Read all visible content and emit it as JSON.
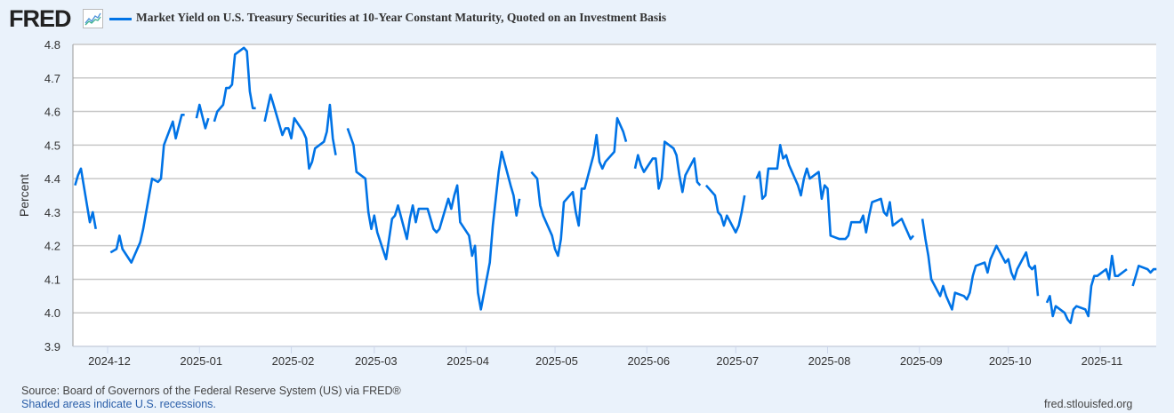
{
  "header": {
    "logo": "FRED",
    "logo_icon": "line-chart-icon",
    "title": "Market Yield on U.S. Treasury Securities at 10-Year Constant Maturity, Quoted on an Investment Basis"
  },
  "footer": {
    "source": "Source: Board of Governors of the Federal Reserve System (US) via FRED®",
    "recessions_link": "Shaded areas indicate U.S. recessions.",
    "site": "fred.stlouisfed.org"
  },
  "colors": {
    "series": "#0073e6",
    "grid": "#c8c8c8",
    "background": "#eaf2fb",
    "plot": "#ffffff"
  },
  "chart_data": {
    "type": "line",
    "title": "Market Yield on U.S. Treasury Securities at 10-Year Constant Maturity, Quoted on an Investment Basis",
    "xlabel": "",
    "ylabel": "Percent",
    "ylim": [
      3.9,
      4.8
    ],
    "xlim": [
      "2024-11-20",
      "2025-11-20"
    ],
    "yticks": [
      "3.9",
      "4.0",
      "4.1",
      "4.2",
      "4.3",
      "4.4",
      "4.5",
      "4.6",
      "4.7",
      "4.8"
    ],
    "xticks": [
      "2024-12",
      "2025-01",
      "2025-02",
      "2025-03",
      "2025-04",
      "2025-05",
      "2025-06",
      "2025-07",
      "2025-08",
      "2025-09",
      "2025-10",
      "2025-11"
    ],
    "grid": true,
    "legend": "top",
    "series": [
      {
        "name": "Market Yield on U.S. Treasury Securities at 10-Year Constant Maturity, Quoted on an Investment Basis",
        "points": [
          [
            "2024-11-20",
            4.38
          ],
          [
            "2024-11-21",
            4.41
          ],
          [
            "2024-11-22",
            4.43
          ],
          [
            "2024-11-25",
            4.27
          ],
          [
            "2024-11-26",
            4.3
          ],
          [
            "2024-11-27",
            4.25
          ],
          [
            "2024-11-28",
            null
          ],
          [
            "2024-12-02",
            4.18
          ],
          [
            "2024-12-04",
            4.19
          ],
          [
            "2024-12-05",
            4.23
          ],
          [
            "2024-12-06",
            4.19
          ],
          [
            "2024-12-09",
            4.15
          ],
          [
            "2024-12-10",
            4.17
          ],
          [
            "2024-12-12",
            4.21
          ],
          [
            "2024-12-13",
            4.25
          ],
          [
            "2024-12-16",
            4.4
          ],
          [
            "2024-12-18",
            4.39
          ],
          [
            "2024-12-19",
            4.4
          ],
          [
            "2024-12-20",
            4.5
          ],
          [
            "2024-12-23",
            4.57
          ],
          [
            "2024-12-24",
            4.52
          ],
          [
            "2024-12-26",
            4.59
          ],
          [
            "2024-12-27",
            4.59
          ],
          [
            "2024-12-28",
            null
          ],
          [
            "2024-12-31",
            4.58
          ],
          [
            "2025-01-01",
            4.62
          ],
          [
            "2025-01-03",
            4.55
          ],
          [
            "2025-01-04",
            4.58
          ],
          [
            "2025-01-05",
            null
          ],
          [
            "2025-01-06",
            4.57
          ],
          [
            "2025-01-07",
            4.6
          ],
          [
            "2025-01-09",
            4.62
          ],
          [
            "2025-01-10",
            4.67
          ],
          [
            "2025-01-11",
            4.67
          ],
          [
            "2025-01-12",
            4.68
          ],
          [
            "2025-01-13",
            4.77
          ],
          [
            "2025-01-16",
            4.79
          ],
          [
            "2025-01-17",
            4.78
          ],
          [
            "2025-01-18",
            4.66
          ],
          [
            "2025-01-19",
            4.61
          ],
          [
            "2025-01-20",
            4.61
          ],
          [
            "2025-01-21",
            null
          ],
          [
            "2025-01-23",
            4.57
          ],
          [
            "2025-01-25",
            4.65
          ],
          [
            "2025-01-26",
            4.62
          ],
          [
            "2025-01-29",
            4.53
          ],
          [
            "2025-01-30",
            4.55
          ],
          [
            "2025-01-31",
            4.55
          ],
          [
            "2025-02-01",
            4.52
          ],
          [
            "2025-02-02",
            4.58
          ],
          [
            "2025-02-05",
            4.54
          ],
          [
            "2025-02-06",
            4.52
          ],
          [
            "2025-02-07",
            4.43
          ],
          [
            "2025-02-08",
            4.45
          ],
          [
            "2025-02-09",
            4.49
          ],
          [
            "2025-02-12",
            4.51
          ],
          [
            "2025-02-13",
            4.54
          ],
          [
            "2025-02-14",
            4.62
          ],
          [
            "2025-02-15",
            4.52
          ],
          [
            "2025-02-16",
            4.47
          ],
          [
            "2025-02-17",
            null
          ],
          [
            "2025-02-20",
            4.55
          ],
          [
            "2025-02-22",
            4.5
          ],
          [
            "2025-02-23",
            4.42
          ],
          [
            "2025-02-26",
            4.4
          ],
          [
            "2025-02-27",
            4.3
          ],
          [
            "2025-02-28",
            4.25
          ],
          [
            "2025-03-01",
            4.29
          ],
          [
            "2025-03-02",
            4.24
          ],
          [
            "2025-03-05",
            4.16
          ],
          [
            "2025-03-07",
            4.28
          ],
          [
            "2025-03-08",
            4.29
          ],
          [
            "2025-03-09",
            4.32
          ],
          [
            "2025-03-12",
            4.22
          ],
          [
            "2025-03-13",
            4.28
          ],
          [
            "2025-03-14",
            4.32
          ],
          [
            "2025-03-15",
            4.27
          ],
          [
            "2025-03-16",
            4.31
          ],
          [
            "2025-03-19",
            4.31
          ],
          [
            "2025-03-20",
            4.28
          ],
          [
            "2025-03-21",
            4.25
          ],
          [
            "2025-03-22",
            4.24
          ],
          [
            "2025-03-23",
            4.25
          ],
          [
            "2025-03-26",
            4.34
          ],
          [
            "2025-03-27",
            4.31
          ],
          [
            "2025-03-28",
            4.35
          ],
          [
            "2025-03-29",
            4.38
          ],
          [
            "2025-03-30",
            4.27
          ],
          [
            "2025-04-02",
            4.23
          ],
          [
            "2025-04-03",
            4.17
          ],
          [
            "2025-04-04",
            4.2
          ],
          [
            "2025-04-05",
            4.06
          ],
          [
            "2025-04-06",
            4.01
          ],
          [
            "2025-04-09",
            4.15
          ],
          [
            "2025-04-10",
            4.26
          ],
          [
            "2025-04-11",
            4.34
          ],
          [
            "2025-04-12",
            4.42
          ],
          [
            "2025-04-13",
            4.48
          ],
          [
            "2025-04-16",
            4.38
          ],
          [
            "2025-04-17",
            4.35
          ],
          [
            "2025-04-18",
            4.29
          ],
          [
            "2025-04-19",
            4.34
          ],
          [
            "2025-04-20",
            null
          ],
          [
            "2025-04-23",
            4.42
          ],
          [
            "2025-04-25",
            4.4
          ],
          [
            "2025-04-26",
            4.32
          ],
          [
            "2025-04-27",
            4.29
          ],
          [
            "2025-04-30",
            4.23
          ],
          [
            "2025-05-01",
            4.19
          ],
          [
            "2025-05-02",
            4.17
          ],
          [
            "2025-05-03",
            4.22
          ],
          [
            "2025-05-04",
            4.33
          ],
          [
            "2025-05-07",
            4.36
          ],
          [
            "2025-05-08",
            4.3
          ],
          [
            "2025-05-09",
            4.26
          ],
          [
            "2025-05-10",
            4.37
          ],
          [
            "2025-05-11",
            4.37
          ],
          [
            "2025-05-14",
            4.47
          ],
          [
            "2025-05-15",
            4.53
          ],
          [
            "2025-05-16",
            4.45
          ],
          [
            "2025-05-17",
            4.43
          ],
          [
            "2025-05-18",
            4.45
          ],
          [
            "2025-05-21",
            4.48
          ],
          [
            "2025-05-22",
            4.58
          ],
          [
            "2025-05-24",
            4.54
          ],
          [
            "2025-05-25",
            4.51
          ],
          [
            "2025-05-26",
            null
          ],
          [
            "2025-05-28",
            4.43
          ],
          [
            "2025-05-29",
            4.47
          ],
          [
            "2025-05-30",
            4.44
          ],
          [
            "2025-05-31",
            4.42
          ],
          [
            "2025-06-03",
            4.46
          ],
          [
            "2025-06-04",
            4.46
          ],
          [
            "2025-06-05",
            4.37
          ],
          [
            "2025-06-06",
            4.4
          ],
          [
            "2025-06-07",
            4.51
          ],
          [
            "2025-06-10",
            4.49
          ],
          [
            "2025-06-11",
            4.47
          ],
          [
            "2025-06-12",
            4.41
          ],
          [
            "2025-06-13",
            4.36
          ],
          [
            "2025-06-14",
            4.41
          ],
          [
            "2025-06-17",
            4.46
          ],
          [
            "2025-06-18",
            4.39
          ],
          [
            "2025-06-19",
            4.38
          ],
          [
            "2025-06-20",
            null
          ],
          [
            "2025-06-21",
            4.38
          ],
          [
            "2025-06-24",
            4.35
          ],
          [
            "2025-06-25",
            4.3
          ],
          [
            "2025-06-26",
            4.29
          ],
          [
            "2025-06-27",
            4.26
          ],
          [
            "2025-06-28",
            4.29
          ],
          [
            "2025-07-01",
            4.24
          ],
          [
            "2025-07-02",
            4.26
          ],
          [
            "2025-07-03",
            4.3
          ],
          [
            "2025-07-04",
            4.35
          ],
          [
            "2025-07-05",
            null
          ],
          [
            "2025-07-08",
            4.4
          ],
          [
            "2025-07-09",
            4.42
          ],
          [
            "2025-07-10",
            4.34
          ],
          [
            "2025-07-11",
            4.35
          ],
          [
            "2025-07-12",
            4.43
          ],
          [
            "2025-07-15",
            4.43
          ],
          [
            "2025-07-16",
            4.5
          ],
          [
            "2025-07-17",
            4.46
          ],
          [
            "2025-07-18",
            4.47
          ],
          [
            "2025-07-19",
            4.44
          ],
          [
            "2025-07-22",
            4.38
          ],
          [
            "2025-07-23",
            4.35
          ],
          [
            "2025-07-24",
            4.4
          ],
          [
            "2025-07-25",
            4.43
          ],
          [
            "2025-07-26",
            4.4
          ],
          [
            "2025-07-29",
            4.42
          ],
          [
            "2025-07-30",
            4.34
          ],
          [
            "2025-07-31",
            4.38
          ],
          [
            "2025-08-01",
            4.37
          ],
          [
            "2025-08-02",
            4.23
          ],
          [
            "2025-08-05",
            4.22
          ],
          [
            "2025-08-06",
            4.22
          ],
          [
            "2025-08-07",
            4.22
          ],
          [
            "2025-08-08",
            4.23
          ],
          [
            "2025-08-09",
            4.27
          ],
          [
            "2025-08-12",
            4.27
          ],
          [
            "2025-08-13",
            4.29
          ],
          [
            "2025-08-14",
            4.24
          ],
          [
            "2025-08-15",
            4.29
          ],
          [
            "2025-08-16",
            4.33
          ],
          [
            "2025-08-19",
            4.34
          ],
          [
            "2025-08-20",
            4.3
          ],
          [
            "2025-08-21",
            4.29
          ],
          [
            "2025-08-22",
            4.33
          ],
          [
            "2025-08-23",
            4.26
          ],
          [
            "2025-08-26",
            4.28
          ],
          [
            "2025-08-27",
            4.26
          ],
          [
            "2025-08-28",
            4.24
          ],
          [
            "2025-08-29",
            4.22
          ],
          [
            "2025-08-30",
            4.23
          ],
          [
            "2025-08-31",
            null
          ],
          [
            "2025-09-02",
            4.28
          ],
          [
            "2025-09-03",
            4.22
          ],
          [
            "2025-09-04",
            4.17
          ],
          [
            "2025-09-05",
            4.1
          ],
          [
            "2025-09-08",
            4.05
          ],
          [
            "2025-09-09",
            4.08
          ],
          [
            "2025-09-10",
            4.05
          ],
          [
            "2025-09-11",
            4.03
          ],
          [
            "2025-09-12",
            4.01
          ],
          [
            "2025-09-13",
            4.06
          ],
          [
            "2025-09-16",
            4.05
          ],
          [
            "2025-09-17",
            4.04
          ],
          [
            "2025-09-18",
            4.06
          ],
          [
            "2025-09-19",
            4.11
          ],
          [
            "2025-09-20",
            4.14
          ],
          [
            "2025-09-23",
            4.15
          ],
          [
            "2025-09-24",
            4.12
          ],
          [
            "2025-09-25",
            4.16
          ],
          [
            "2025-09-26",
            4.18
          ],
          [
            "2025-09-27",
            4.2
          ],
          [
            "2025-09-30",
            4.15
          ],
          [
            "2025-10-01",
            4.16
          ],
          [
            "2025-10-02",
            4.12
          ],
          [
            "2025-10-03",
            4.1
          ],
          [
            "2025-10-04",
            4.13
          ],
          [
            "2025-10-07",
            4.18
          ],
          [
            "2025-10-08",
            4.14
          ],
          [
            "2025-10-09",
            4.13
          ],
          [
            "2025-10-10",
            4.14
          ],
          [
            "2025-10-11",
            4.05
          ],
          [
            "2025-10-12",
            null
          ],
          [
            "2025-10-14",
            4.03
          ],
          [
            "2025-10-15",
            4.05
          ],
          [
            "2025-10-16",
            3.99
          ],
          [
            "2025-10-17",
            4.02
          ],
          [
            "2025-10-20",
            4.0
          ],
          [
            "2025-10-21",
            3.98
          ],
          [
            "2025-10-22",
            3.97
          ],
          [
            "2025-10-23",
            4.01
          ],
          [
            "2025-10-24",
            4.02
          ],
          [
            "2025-10-27",
            4.01
          ],
          [
            "2025-10-28",
            3.99
          ],
          [
            "2025-10-29",
            4.08
          ],
          [
            "2025-10-30",
            4.11
          ],
          [
            "2025-10-31",
            4.11
          ],
          [
            "2025-11-03",
            4.13
          ],
          [
            "2025-11-04",
            4.1
          ],
          [
            "2025-11-05",
            4.17
          ],
          [
            "2025-11-06",
            4.11
          ],
          [
            "2025-11-07",
            4.11
          ],
          [
            "2025-11-10",
            4.13
          ],
          [
            "2025-11-11",
            null
          ],
          [
            "2025-11-12",
            4.08
          ],
          [
            "2025-11-13",
            4.11
          ],
          [
            "2025-11-14",
            4.14
          ],
          [
            "2025-11-17",
            4.13
          ],
          [
            "2025-11-18",
            4.12
          ],
          [
            "2025-11-19",
            4.13
          ],
          [
            "2025-11-20",
            4.13
          ]
        ]
      }
    ]
  }
}
